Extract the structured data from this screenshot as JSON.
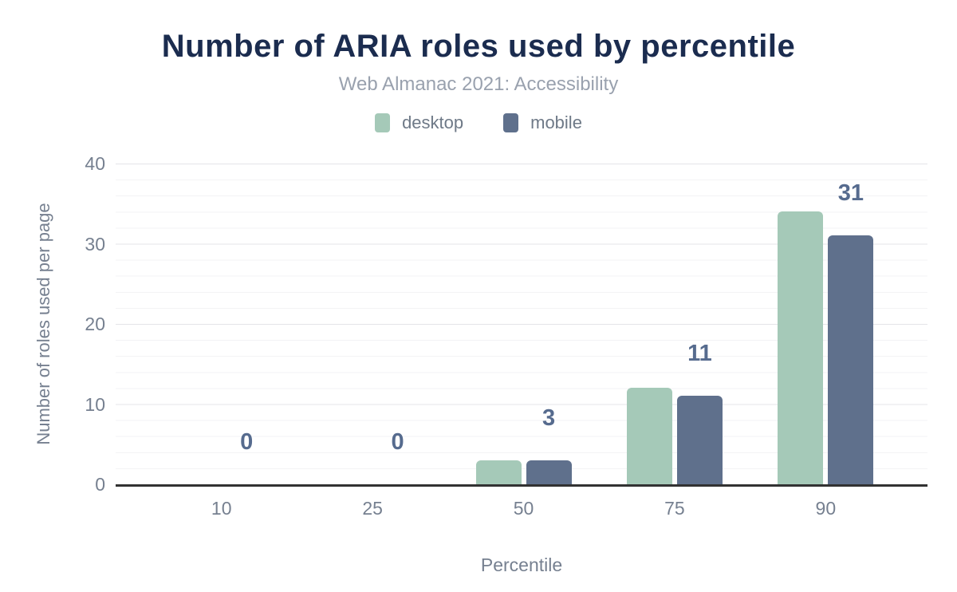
{
  "header": {
    "title": "Number of ARIA roles used by percentile",
    "subtitle": "Web Almanac 2021: Accessibility"
  },
  "legend": [
    {
      "label": "desktop",
      "color": "#a5c9b8"
    },
    {
      "label": "mobile",
      "color": "#5f708c"
    }
  ],
  "chart_data": {
    "type": "bar",
    "title": "Number of ARIA roles used by percentile",
    "subtitle": "Web Almanac 2021: Accessibility",
    "categories": [
      "10",
      "25",
      "50",
      "75",
      "90"
    ],
    "series": [
      {
        "name": "desktop",
        "color": "#a5c9b8",
        "values": [
          0,
          0,
          3,
          12,
          34
        ]
      },
      {
        "name": "mobile",
        "color": "#5f708c",
        "values": [
          0,
          0,
          3,
          11,
          31
        ]
      }
    ],
    "data_labels": [
      "0",
      "0",
      "3",
      "11",
      "31"
    ],
    "data_labels_series": "mobile",
    "xlabel": "Percentile",
    "ylabel": "Number of roles used per page",
    "ylim": [
      0,
      40
    ],
    "yticks": [
      0,
      10,
      20,
      30,
      40
    ],
    "grid": {
      "major_interval": 10,
      "minor_interval": 2,
      "gridlines": "horizontal"
    },
    "legend_position": "top"
  },
  "colors": {
    "title": "#1b2c4f",
    "subtitle": "#99a1ae",
    "axis_text": "#768090",
    "data_label": "#566b8e",
    "axis_line": "#323232",
    "grid_major": "#e4e4e8",
    "grid_minor": "#f3f3f5"
  }
}
